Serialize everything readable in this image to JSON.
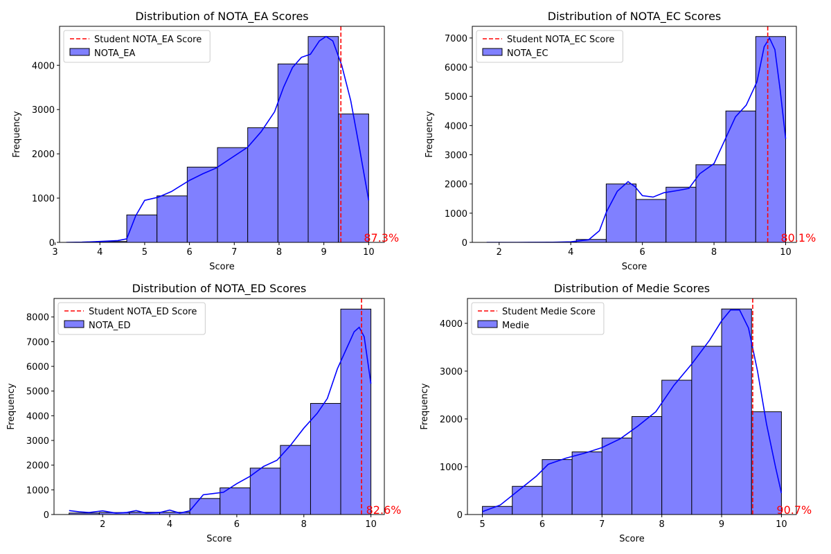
{
  "chart_data": [
    {
      "type": "bar",
      "title": "Distribution of NOTA_EA Scores",
      "xlabel": "Score",
      "ylabel": "Frequency",
      "xlim": [
        3.1,
        10.35
      ],
      "ylim": [
        0,
        4880
      ],
      "xticks": [
        3,
        4,
        5,
        6,
        7,
        8,
        9,
        10
      ],
      "yticks": [
        0,
        1000,
        2000,
        3000,
        4000
      ],
      "bins": [
        {
          "x0": 3.25,
          "x1": 3.925,
          "value": 0
        },
        {
          "x0": 3.925,
          "x1": 4.6,
          "value": 20
        },
        {
          "x0": 4.6,
          "x1": 5.275,
          "value": 620
        },
        {
          "x0": 5.275,
          "x1": 5.95,
          "value": 1050
        },
        {
          "x0": 5.95,
          "x1": 6.625,
          "value": 1700
        },
        {
          "x0": 6.625,
          "x1": 7.3,
          "value": 2140
        },
        {
          "x0": 7.3,
          "x1": 7.975,
          "value": 2590
        },
        {
          "x0": 7.975,
          "x1": 8.65,
          "value": 4030
        },
        {
          "x0": 8.65,
          "x1": 9.325,
          "value": 4650
        },
        {
          "x0": 9.325,
          "x1": 10.0,
          "value": 2900
        }
      ],
      "kde": [
        [
          3.25,
          0
        ],
        [
          3.6,
          5
        ],
        [
          4.0,
          20
        ],
        [
          4.4,
          40
        ],
        [
          4.6,
          80
        ],
        [
          4.8,
          600
        ],
        [
          5.0,
          950
        ],
        [
          5.3,
          1020
        ],
        [
          5.6,
          1150
        ],
        [
          6.0,
          1400
        ],
        [
          6.3,
          1550
        ],
        [
          6.6,
          1680
        ],
        [
          7.0,
          1950
        ],
        [
          7.3,
          2150
        ],
        [
          7.6,
          2500
        ],
        [
          7.9,
          2950
        ],
        [
          8.1,
          3500
        ],
        [
          8.3,
          3950
        ],
        [
          8.5,
          4180
        ],
        [
          8.7,
          4250
        ],
        [
          8.9,
          4550
        ],
        [
          9.05,
          4650
        ],
        [
          9.2,
          4550
        ],
        [
          9.4,
          4000
        ],
        [
          9.6,
          3200
        ],
        [
          9.8,
          2100
        ],
        [
          10.0,
          950
        ]
      ],
      "marker": {
        "x": 9.38,
        "label": "Student NOTA_EA Score",
        "percent_label": "87.3%"
      },
      "series_name": "NOTA_EA"
    },
    {
      "type": "bar",
      "title": "Distribution of NOTA_EC Scores",
      "xlabel": "Score",
      "ylabel": "Frequency",
      "xlim": [
        1.25,
        10.3
      ],
      "ylim": [
        0,
        7400
      ],
      "xticks": [
        2,
        4,
        6,
        8,
        10
      ],
      "yticks": [
        0,
        1000,
        2000,
        3000,
        4000,
        5000,
        6000,
        7000
      ],
      "bins": [
        {
          "x0": 1.65,
          "x1": 2.485,
          "value": 0
        },
        {
          "x0": 2.485,
          "x1": 3.32,
          "value": 0
        },
        {
          "x0": 3.32,
          "x1": 4.155,
          "value": 10
        },
        {
          "x0": 4.155,
          "x1": 4.99,
          "value": 100
        },
        {
          "x0": 4.99,
          "x1": 5.825,
          "value": 2000
        },
        {
          "x0": 5.825,
          "x1": 6.66,
          "value": 1470
        },
        {
          "x0": 6.66,
          "x1": 7.495,
          "value": 1890
        },
        {
          "x0": 7.495,
          "x1": 8.33,
          "value": 2660
        },
        {
          "x0": 8.33,
          "x1": 9.165,
          "value": 4500
        },
        {
          "x0": 9.165,
          "x1": 10.0,
          "value": 7050
        }
      ],
      "kde": [
        [
          1.65,
          0
        ],
        [
          2.5,
          0
        ],
        [
          3.5,
          5
        ],
        [
          4.0,
          20
        ],
        [
          4.5,
          90
        ],
        [
          4.8,
          400
        ],
        [
          5.0,
          1050
        ],
        [
          5.3,
          1750
        ],
        [
          5.6,
          2080
        ],
        [
          5.8,
          1900
        ],
        [
          6.0,
          1600
        ],
        [
          6.3,
          1550
        ],
        [
          6.6,
          1700
        ],
        [
          7.0,
          1780
        ],
        [
          7.3,
          1850
        ],
        [
          7.6,
          2350
        ],
        [
          8.0,
          2700
        ],
        [
          8.3,
          3500
        ],
        [
          8.6,
          4300
        ],
        [
          8.9,
          4700
        ],
        [
          9.2,
          5500
        ],
        [
          9.4,
          6700
        ],
        [
          9.55,
          7000
        ],
        [
          9.7,
          6600
        ],
        [
          9.85,
          5200
        ],
        [
          10.0,
          3550
        ]
      ],
      "marker": {
        "x": 9.5,
        "label": "Student NOTA_EC Score",
        "percent_label": "80.1%"
      },
      "series_name": "NOTA_EC"
    },
    {
      "type": "bar",
      "title": "Distribution of NOTA_ED Scores",
      "xlabel": "Score",
      "ylabel": "Frequency",
      "xlim": [
        0.55,
        10.4
      ],
      "ylim": [
        0,
        8750
      ],
      "xticks": [
        2,
        4,
        6,
        8,
        10
      ],
      "yticks": [
        0,
        1000,
        2000,
        3000,
        4000,
        5000,
        6000,
        7000,
        8000
      ],
      "bins": [
        {
          "x0": 1.0,
          "x1": 1.9,
          "value": 60
        },
        {
          "x0": 1.9,
          "x1": 2.8,
          "value": 80
        },
        {
          "x0": 2.8,
          "x1": 3.7,
          "value": 90
        },
        {
          "x0": 3.7,
          "x1": 4.6,
          "value": 90
        },
        {
          "x0": 4.6,
          "x1": 5.5,
          "value": 650
        },
        {
          "x0": 5.5,
          "x1": 6.4,
          "value": 1080
        },
        {
          "x0": 6.4,
          "x1": 7.3,
          "value": 1880
        },
        {
          "x0": 7.3,
          "x1": 8.2,
          "value": 2800
        },
        {
          "x0": 8.2,
          "x1": 9.1,
          "value": 4500
        },
        {
          "x0": 9.1,
          "x1": 10.0,
          "value": 8320
        }
      ],
      "kde": [
        [
          1.0,
          160
        ],
        [
          1.3,
          110
        ],
        [
          1.6,
          80
        ],
        [
          2.0,
          150
        ],
        [
          2.4,
          60
        ],
        [
          2.7,
          80
        ],
        [
          3.0,
          160
        ],
        [
          3.3,
          60
        ],
        [
          3.7,
          80
        ],
        [
          4.0,
          180
        ],
        [
          4.3,
          60
        ],
        [
          4.6,
          150
        ],
        [
          5.0,
          800
        ],
        [
          5.3,
          850
        ],
        [
          5.6,
          900
        ],
        [
          6.0,
          1250
        ],
        [
          6.4,
          1550
        ],
        [
          6.8,
          1950
        ],
        [
          7.2,
          2200
        ],
        [
          7.6,
          2800
        ],
        [
          8.0,
          3500
        ],
        [
          8.4,
          4100
        ],
        [
          8.7,
          4700
        ],
        [
          9.0,
          5900
        ],
        [
          9.3,
          6800
        ],
        [
          9.5,
          7400
        ],
        [
          9.65,
          7580
        ],
        [
          9.8,
          7200
        ],
        [
          10.0,
          5300
        ]
      ],
      "marker": {
        "x": 9.72,
        "label": "Student NOTA_ED Score",
        "percent_label": "82.6%"
      },
      "series_name": "NOTA_ED"
    },
    {
      "type": "bar",
      "title": "Distribution of Medie Scores",
      "xlabel": "Score",
      "ylabel": "Frequency",
      "xlim": [
        4.75,
        10.25
      ],
      "ylim": [
        0,
        4520
      ],
      "xticks": [
        5,
        6,
        7,
        8,
        9,
        10
      ],
      "yticks": [
        0,
        1000,
        2000,
        3000,
        4000
      ],
      "bins": [
        {
          "x0": 5.0,
          "x1": 5.5,
          "value": 170
        },
        {
          "x0": 5.5,
          "x1": 6.0,
          "value": 590
        },
        {
          "x0": 6.0,
          "x1": 6.5,
          "value": 1150
        },
        {
          "x0": 6.5,
          "x1": 7.0,
          "value": 1310
        },
        {
          "x0": 7.0,
          "x1": 7.5,
          "value": 1600
        },
        {
          "x0": 7.5,
          "x1": 8.0,
          "value": 2050
        },
        {
          "x0": 8.0,
          "x1": 8.5,
          "value": 2810
        },
        {
          "x0": 8.5,
          "x1": 9.0,
          "value": 3520
        },
        {
          "x0": 9.0,
          "x1": 9.5,
          "value": 4300
        },
        {
          "x0": 9.5,
          "x1": 10.0,
          "value": 2150
        }
      ],
      "kde": [
        [
          5.0,
          60
        ],
        [
          5.3,
          200
        ],
        [
          5.6,
          500
        ],
        [
          5.9,
          800
        ],
        [
          6.1,
          1050
        ],
        [
          6.4,
          1180
        ],
        [
          6.7,
          1280
        ],
        [
          7.0,
          1400
        ],
        [
          7.3,
          1580
        ],
        [
          7.6,
          1850
        ],
        [
          7.9,
          2150
        ],
        [
          8.2,
          2700
        ],
        [
          8.5,
          3150
        ],
        [
          8.8,
          3650
        ],
        [
          9.0,
          4050
        ],
        [
          9.15,
          4280
        ],
        [
          9.3,
          4280
        ],
        [
          9.45,
          3900
        ],
        [
          9.6,
          3000
        ],
        [
          9.75,
          1900
        ],
        [
          9.9,
          1000
        ],
        [
          10.0,
          450
        ]
      ],
      "marker": {
        "x": 9.52,
        "label": "Student Medie Score",
        "percent_label": "90.7%"
      },
      "series_name": "Medie"
    }
  ],
  "colors": {
    "bar_fill": "#8080ff",
    "bar_edge": "#000000",
    "kde_line": "#0000ff",
    "marker": "#ff0000"
  }
}
